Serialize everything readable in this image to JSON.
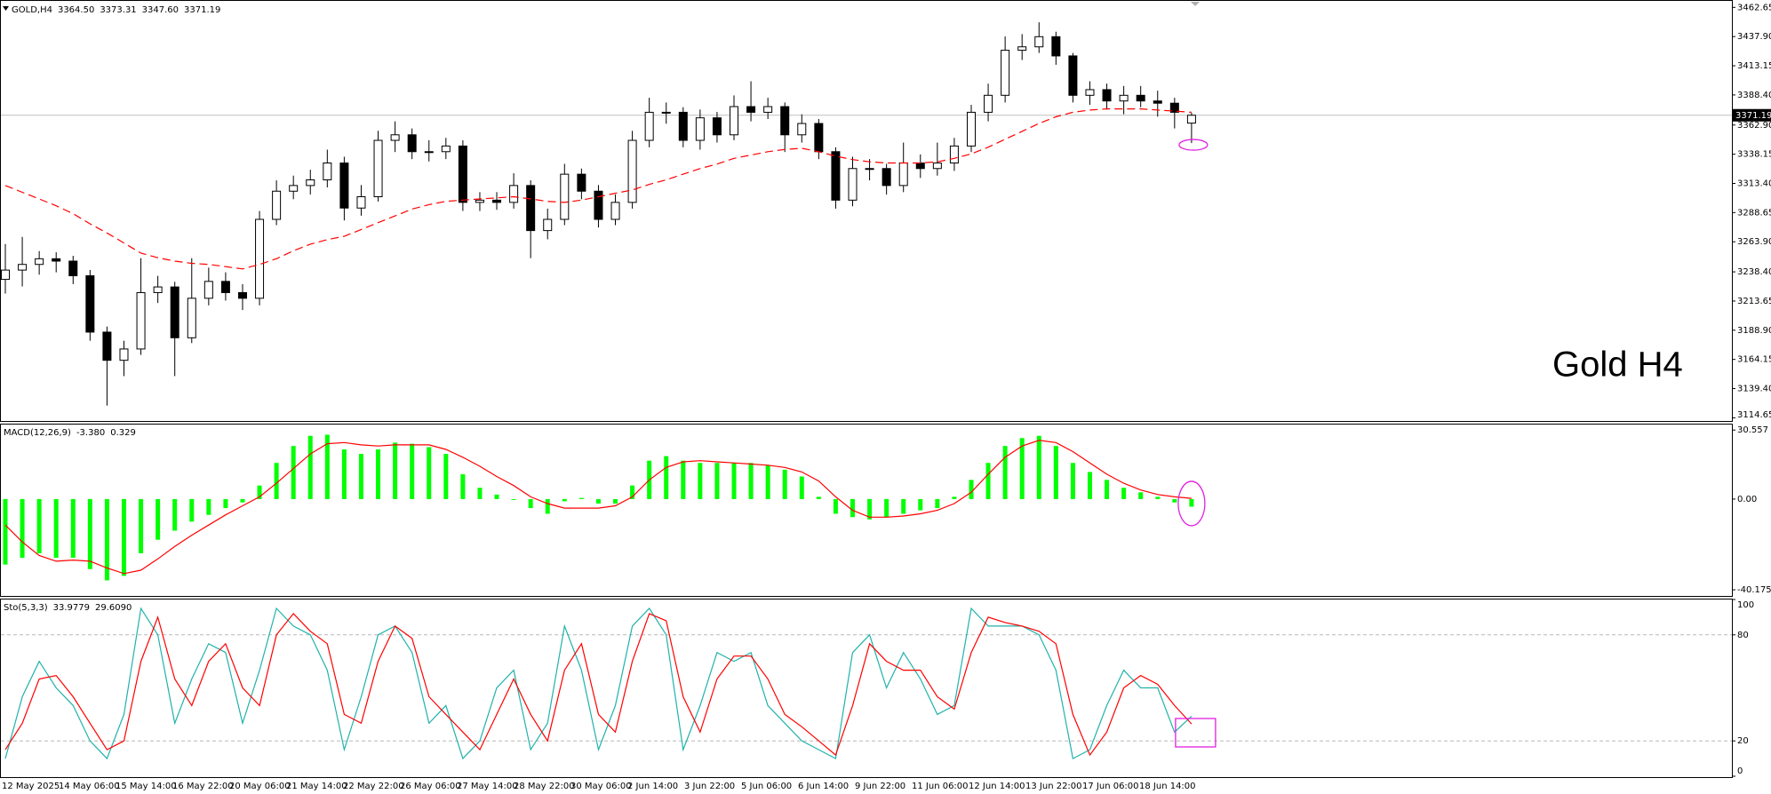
{
  "chart_data": [
    {
      "type": "candlestick",
      "title": "GOLD,H4",
      "title_values": [
        "3364.50",
        "3373.31",
        "3347.60",
        "3371.19"
      ],
      "annotation": "Gold H4",
      "open": [
        3232.0,
        3239.9,
        3244.7,
        3249.5,
        3247.5,
        3235.1,
        3187.3,
        3163.4,
        3173.0,
        3220.8,
        3225.6,
        3182.5,
        3216.0,
        3230.3,
        3220.8,
        3216.0,
        3282.9,
        3306.8,
        3311.6,
        3316.4,
        3330.7,
        3292.5,
        3302.1,
        3349.9,
        3354.6,
        3340.3,
        3340.3,
        3345.1,
        3297.3,
        3299.2,
        3297.3,
        3311.6,
        3273.4,
        3282.9,
        3321.2,
        3306.8,
        3282.9,
        3297.3,
        3349.9,
        3373.7,
        3373.7,
        3349.9,
        3369.0,
        3354.6,
        3378.5,
        3373.7,
        3378.5,
        3354.6,
        3364.2,
        3340.3,
        3299.2,
        3326.0,
        3326.0,
        3311.6,
        3330.7,
        3326.0,
        3330.7,
        3345.1,
        3373.7,
        3388.1,
        3426.3,
        3429.2,
        3437.8,
        3421.5,
        3388.1,
        3392.9,
        3383.3,
        3388.1,
        3383.3,
        3381.4,
        3364.5
      ],
      "high": [
        3262,
        3268,
        3256,
        3255,
        3252,
        3240,
        3192,
        3180,
        3250,
        3235,
        3230,
        3250,
        3242,
        3238,
        3228,
        3290,
        3316,
        3320,
        3325,
        3342,
        3336,
        3312,
        3358,
        3366,
        3360,
        3350,
        3352,
        3350,
        3306,
        3306,
        3322,
        3316,
        3292,
        3330,
        3326,
        3312,
        3304,
        3358,
        3386,
        3382,
        3378,
        3376,
        3374,
        3388,
        3400,
        3386,
        3382,
        3372,
        3368,
        3344,
        3336,
        3334,
        3330,
        3348,
        3338,
        3348,
        3352,
        3380,
        3398,
        3438,
        3440,
        3450,
        3442,
        3424,
        3400,
        3398,
        3396,
        3396,
        3392,
        3386,
        3373.31
      ],
      "low": [
        3220,
        3226,
        3236,
        3238,
        3228,
        3180,
        3125,
        3150,
        3168,
        3212,
        3150,
        3178,
        3210,
        3214,
        3206,
        3210,
        3278,
        3300,
        3304,
        3310,
        3282,
        3286,
        3298,
        3340,
        3334,
        3332,
        3334,
        3290,
        3290,
        3291,
        3292,
        3250,
        3266,
        3278,
        3300,
        3276,
        3278,
        3292,
        3344,
        3364,
        3344,
        3342,
        3348,
        3350,
        3366,
        3368,
        3340,
        3348,
        3334,
        3292,
        3294,
        3316,
        3304,
        3306,
        3318,
        3320,
        3324,
        3340,
        3366,
        3382,
        3418,
        3424,
        3414,
        3382,
        3380,
        3376,
        3372,
        3378,
        3370,
        3360,
        3347.6
      ],
      "close": [
        3239.9,
        3244.7,
        3249.5,
        3247.5,
        3235.1,
        3187.3,
        3163.4,
        3173.0,
        3220.8,
        3225.6,
        3182.5,
        3216.0,
        3230.3,
        3220.8,
        3216.0,
        3282.9,
        3306.8,
        3311.6,
        3316.4,
        3330.7,
        3292.5,
        3302.1,
        3349.9,
        3354.6,
        3340.3,
        3340.3,
        3345.1,
        3297.3,
        3299.2,
        3297.3,
        3311.6,
        3273.4,
        3282.9,
        3321.2,
        3306.8,
        3282.9,
        3297.3,
        3349.9,
        3373.7,
        3373.7,
        3349.9,
        3369.0,
        3354.6,
        3378.5,
        3373.7,
        3378.5,
        3354.6,
        3364.2,
        3340.3,
        3299.2,
        3326.0,
        3326.0,
        3311.6,
        3330.7,
        3326.0,
        3330.7,
        3345.1,
        3373.7,
        3388.1,
        3426.3,
        3429.2,
        3437.8,
        3421.5,
        3388.1,
        3392.9,
        3383.3,
        3388.1,
        3383.3,
        3381.4,
        3373.7,
        3371.19
      ],
      "up_color": "#ffffff",
      "down_color": "#000000",
      "ma": {
        "color": "#ff0000",
        "values": [
          3311.6,
          3305.9,
          3300.2,
          3294.4,
          3287.7,
          3279.1,
          3271.4,
          3262.9,
          3254.3,
          3250.4,
          3247.5,
          3245.6,
          3244.7,
          3242.8,
          3240.9,
          3244.7,
          3249.5,
          3256.2,
          3261.9,
          3265.7,
          3268.6,
          3274.3,
          3280.1,
          3285.8,
          3291.6,
          3295.4,
          3298.2,
          3299.2,
          3300.2,
          3301.1,
          3302.1,
          3300.2,
          3298.2,
          3297.3,
          3299.2,
          3302.1,
          3305.0,
          3307.8,
          3312.6,
          3316.4,
          3321.2,
          3326.0,
          3329.8,
          3334.6,
          3337.4,
          3340.3,
          3342.2,
          3343.2,
          3340.3,
          3336.5,
          3333.6,
          3331.7,
          3330.7,
          3330.7,
          3330.7,
          3331.7,
          3334.6,
          3338.4,
          3344.1,
          3350.8,
          3357.5,
          3364.2,
          3369.9,
          3373.7,
          3375.6,
          3376.6,
          3376.6,
          3376.6,
          3375.6,
          3374.7,
          3373.7
        ]
      },
      "price_line": {
        "value": 3371.19,
        "label": "3371.19",
        "color": "#c0c0c0"
      },
      "ylim": [
        3112.7,
        3467.4
      ],
      "yticks": [
        3462.65,
        {
          "value": 3437.9,
          "label": "3437.90"
        },
        3413.15,
        {
          "value": 3388.4,
          "label": "3388.40"
        },
        {
          "value": 3362.9,
          "label": "3362.90"
        },
        3338.15,
        {
          "value": 3313.4,
          "label": "3313.40"
        },
        3288.65,
        {
          "value": 3263.9,
          "label": "3263.90"
        },
        {
          "value": 3238.4,
          "label": "3238.40"
        },
        3213.65,
        {
          "value": 3188.9,
          "label": "3188.90"
        },
        3164.15,
        {
          "value": 3139.4,
          "label": "3139.40"
        },
        3114.65
      ]
    },
    {
      "type": "macd",
      "title": "MACD(12,26,9)",
      "title_values": [
        "-3.380",
        "0.329"
      ],
      "histogram": {
        "color": "#00ff00",
        "values": [
          -29,
          -26,
          -24,
          -26,
          -26,
          -31,
          -36,
          -34,
          -24,
          -18,
          -14,
          -10,
          -7,
          -4,
          -1.5,
          6,
          16,
          23.5,
          28,
          28.5,
          22,
          20,
          22,
          25,
          24.5,
          23,
          20,
          11,
          5,
          2,
          0,
          -4,
          -6.5,
          -1,
          0.5,
          -2,
          -2,
          6,
          17,
          19,
          17,
          16,
          16,
          16,
          16,
          15,
          13,
          10,
          1,
          -6.5,
          -8,
          -9,
          -8,
          -6.5,
          -5,
          -4,
          1,
          8.5,
          16,
          23.5,
          27,
          28,
          23.5,
          16,
          12,
          8.5,
          5,
          3,
          1,
          -1.5,
          -3.38
        ]
      },
      "signal": {
        "color": "#ff0000",
        "values": [
          -11.5,
          -19,
          -25,
          -27.5,
          -27,
          -27.5,
          -30.5,
          -33,
          -31.5,
          -26.5,
          -21,
          -16,
          -11.5,
          -7,
          -3,
          1,
          7,
          13.5,
          20,
          24.5,
          25,
          24,
          23.5,
          24,
          24,
          24,
          22,
          18.5,
          14.5,
          10,
          6,
          1,
          -2,
          -4,
          -4,
          -4,
          -3,
          1,
          8.5,
          14,
          16.5,
          17,
          16.5,
          16,
          15.5,
          15,
          14,
          12,
          8,
          1,
          -5,
          -8,
          -8,
          -7.5,
          -6.5,
          -5,
          -2,
          3,
          11,
          18.5,
          23.5,
          26,
          25,
          21,
          16,
          11,
          7,
          4,
          2,
          1,
          0.329
        ]
      },
      "ylim": [
        -42.5,
        33
      ],
      "yticks": [
        30.557,
        {
          "value": 0,
          "label": "0.00"
        },
        -40.175
      ]
    },
    {
      "type": "line",
      "title": "Sto(5,3,3)",
      "title_values": [
        "33.9779",
        "29.6090"
      ],
      "series": [
        {
          "color": "#20b2aa",
          "values": [
            10,
            45,
            65,
            50,
            40,
            20,
            10,
            35,
            95,
            80,
            30,
            55,
            75,
            70,
            30,
            60,
            95,
            85,
            80,
            60,
            15,
            45,
            80,
            85,
            70,
            30,
            40,
            10,
            20,
            50,
            60,
            15,
            30,
            85,
            60,
            15,
            40,
            85,
            95,
            80,
            15,
            40,
            70,
            65,
            70,
            40,
            30,
            20,
            15,
            10,
            70,
            80,
            50,
            70,
            55,
            35,
            40,
            95,
            85,
            85,
            85,
            80,
            60,
            10,
            15,
            40,
            60,
            50,
            50,
            25,
            33.9779
          ]
        },
        {
          "color": "#ff0000",
          "values": [
            15,
            30,
            55,
            57,
            45,
            30,
            15,
            20,
            65,
            90,
            55,
            40,
            65,
            75,
            50,
            40,
            80,
            92,
            82,
            75,
            35,
            30,
            65,
            85,
            78,
            45,
            35,
            25,
            15,
            35,
            55,
            35,
            20,
            60,
            75,
            35,
            25,
            65,
            92,
            88,
            45,
            25,
            55,
            68,
            68,
            55,
            35,
            28,
            20,
            12,
            40,
            75,
            65,
            60,
            60,
            45,
            38,
            70,
            90,
            87,
            85,
            82,
            75,
            35,
            12,
            25,
            50,
            57,
            52,
            40,
            29.609
          ]
        }
      ],
      "ylim": [
        0,
        100
      ],
      "yticks": [
        100,
        80,
        20,
        0
      ],
      "grid": true,
      "x_labels": [
        "12 May 2025",
        "14 May 06:00",
        "15 May 14:00",
        "16 May 22:00",
        "20 May 06:00",
        "21 May 14:00",
        "22 May 22:00",
        "26 May 06:00",
        "27 May 14:00",
        "28 May 22:00",
        "30 May 06:00",
        "2 Jun 14:00",
        "3 Jun 22:00",
        "5 Jun 06:00",
        "6 Jun 14:00",
        "9 Jun 22:00",
        "11 Jun 06:00",
        "12 Jun 14:00",
        "13 Jun 22:00",
        "17 Jun 06:00",
        "18 Jun 14:00"
      ]
    }
  ]
}
